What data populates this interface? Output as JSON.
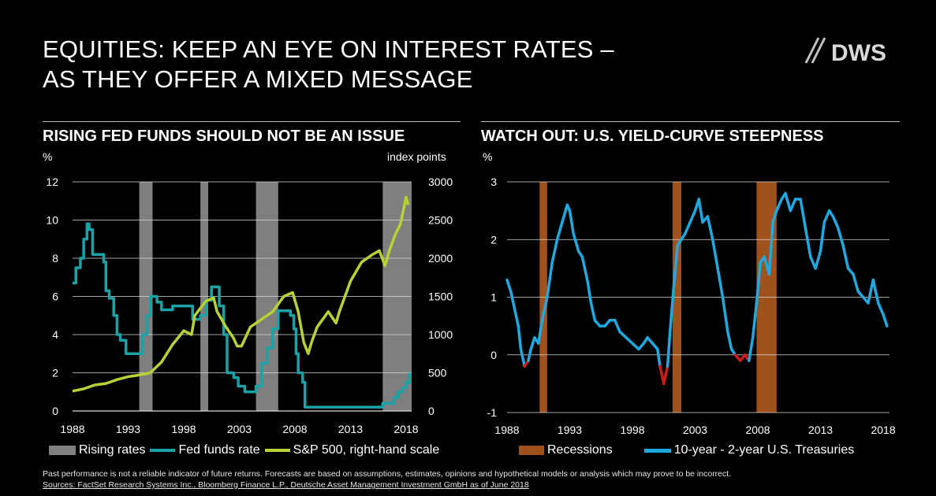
{
  "slide": {
    "title_line1": "EQUITIES: KEEP AN EYE ON INTEREST RATES –",
    "title_line2": "AS THEY OFFER A MIXED MESSAGE",
    "logo_text": "DWS"
  },
  "footnote": {
    "disclaimer": "Past performance is not a reliable indicator of future returns. Forecasts are based on assumptions, estimates, opinions and hypothetical models or analysis which may prove to be incorrect.",
    "sources": "Sources: FactSet Research Systems Inc., Bloomberg Finance L.P., Deutsche Asset Management Investment GmbH as of June 2018"
  },
  "colors": {
    "fed_funds": "#1aa3a6",
    "sp500": "#b5d334",
    "rising_rates": "#7f7f7f",
    "recession": "#a0521c",
    "yield_curve": "#1ea9e0",
    "inversion": "#cc1b1b",
    "grid": "#d9d9d9"
  },
  "chart_data": [
    {
      "type": "line",
      "title": "RISING FED FUNDS SHOULD NOT BE AN ISSUE",
      "ylabel_left": "%",
      "ylabel_right": "index points",
      "xlim": [
        1988,
        2018.5
      ],
      "ylim_left": [
        0,
        12
      ],
      "ylim_right": [
        0,
        3000
      ],
      "x_ticks": [
        1988,
        1993,
        1998,
        2003,
        2008,
        2013,
        2018
      ],
      "y_ticks_left": [
        0,
        2,
        4,
        6,
        8,
        10,
        12
      ],
      "y_ticks_right": [
        0,
        500,
        1000,
        1500,
        2000,
        2500,
        3000
      ],
      "grid": "horizontal",
      "legend_position": "bottom",
      "legend": [
        "Rising rates",
        "Fed funds rate",
        "S&P 500, right-hand scale"
      ],
      "shaded_periods": [
        [
          1994.0,
          1995.2
        ],
        [
          1999.5,
          2000.2
        ],
        [
          2004.5,
          2006.5
        ],
        [
          2015.9,
          2018.5
        ]
      ],
      "series": [
        {
          "name": "Fed funds rate",
          "axis": "left",
          "x": [
            1988.0,
            1988.3,
            1988.7,
            1989.0,
            1989.3,
            1989.5,
            1989.8,
            1990.5,
            1990.8,
            1991.0,
            1991.3,
            1991.7,
            1992.0,
            1992.3,
            1992.8,
            1993.5,
            1994.0,
            1994.3,
            1994.7,
            1995.0,
            1995.3,
            1995.6,
            1996.0,
            1996.5,
            1997.0,
            1998.0,
            1998.8,
            1999.0,
            1999.5,
            2000.0,
            2000.5,
            2000.9,
            2001.2,
            2001.6,
            2001.9,
            2002.5,
            2002.9,
            2003.5,
            2004.5,
            2005.0,
            2005.5,
            2006.0,
            2006.5,
            2007.0,
            2007.6,
            2007.9,
            2008.1,
            2008.3,
            2008.7,
            2008.9,
            2009.0,
            2015.9,
            2016.5,
            2016.9,
            2017.3,
            2017.7,
            2018.0,
            2018.3
          ],
          "y": [
            6.7,
            7.5,
            8.0,
            9.0,
            9.8,
            9.5,
            8.2,
            8.2,
            7.8,
            6.3,
            5.9,
            5.0,
            4.0,
            3.7,
            3.0,
            3.0,
            3.0,
            4.0,
            5.0,
            6.0,
            6.0,
            5.7,
            5.3,
            5.3,
            5.5,
            5.5,
            4.8,
            4.8,
            5.0,
            5.8,
            6.5,
            6.5,
            5.5,
            4.0,
            2.0,
            1.75,
            1.3,
            1.0,
            1.3,
            2.5,
            3.3,
            4.3,
            5.25,
            5.25,
            5.0,
            4.3,
            3.0,
            2.0,
            1.5,
            0.2,
            0.2,
            0.4,
            0.4,
            0.7,
            1.0,
            1.2,
            1.5,
            2.0
          ]
        },
        {
          "name": "S&P 500, right-hand scale",
          "axis": "right",
          "x": [
            1988.0,
            1989.0,
            1990.0,
            1991.0,
            1992.0,
            1993.0,
            1994.0,
            1995.0,
            1996.0,
            1997.0,
            1998.0,
            1998.7,
            1999.0,
            2000.0,
            2000.7,
            2001.0,
            2001.8,
            2002.5,
            2002.8,
            2003.2,
            2004.0,
            2005.0,
            2006.0,
            2007.0,
            2007.8,
            2008.3,
            2008.8,
            2009.2,
            2009.5,
            2010.0,
            2011.0,
            2011.7,
            2012.0,
            2013.0,
            2014.0,
            2015.0,
            2015.6,
            2016.1,
            2016.5,
            2017.0,
            2017.5,
            2018.0,
            2018.2
          ],
          "y": [
            260,
            290,
            340,
            360,
            410,
            450,
            470,
            500,
            640,
            870,
            1050,
            1000,
            1250,
            1440,
            1480,
            1300,
            1100,
            950,
            850,
            850,
            1100,
            1200,
            1300,
            1500,
            1550,
            1300,
            900,
            750,
            900,
            1100,
            1300,
            1150,
            1300,
            1700,
            1950,
            2050,
            2100,
            1900,
            2100,
            2300,
            2450,
            2800,
            2700
          ]
        }
      ]
    },
    {
      "type": "line",
      "title": "WATCH OUT: U.S. YIELD-CURVE STEEPNESS",
      "ylabel": "%",
      "xlim": [
        1988,
        2018.5
      ],
      "ylim": [
        -1,
        3
      ],
      "x_ticks": [
        1988,
        1993,
        1998,
        2003,
        2008,
        2013,
        2018
      ],
      "y_ticks": [
        -1,
        0,
        1,
        2,
        3
      ],
      "grid": "horizontal",
      "legend_position": "bottom",
      "legend": [
        "Recessions",
        "10-year - 2-year U.S. Treasuries"
      ],
      "shaded_periods": [
        [
          1990.6,
          1991.2
        ],
        [
          2001.2,
          2001.9
        ],
        [
          2007.9,
          2009.5
        ]
      ],
      "series": [
        {
          "name": "10-year - 2-year U.S. Treasuries",
          "x": [
            1988.0,
            1988.3,
            1988.6,
            1988.9,
            1989.1,
            1989.4,
            1989.7,
            1989.9,
            1990.2,
            1990.5,
            1990.8,
            1991.2,
            1991.6,
            1992.0,
            1992.4,
            1992.8,
            1993.0,
            1993.3,
            1993.7,
            1994.0,
            1994.4,
            1994.7,
            1995.0,
            1995.4,
            1995.8,
            1996.2,
            1996.6,
            1997.0,
            1997.5,
            1998.0,
            1998.5,
            1998.9,
            1999.2,
            1999.6,
            2000.0,
            2000.2,
            2000.5,
            2000.8,
            2001.0,
            2001.3,
            2001.6,
            2001.9,
            2002.2,
            2002.6,
            2003.0,
            2003.3,
            2003.6,
            2004.0,
            2004.4,
            2004.8,
            2005.2,
            2005.6,
            2005.9,
            2006.2,
            2006.6,
            2007.0,
            2007.3,
            2007.6,
            2007.9,
            2008.2,
            2008.5,
            2008.9,
            2009.2,
            2009.5,
            2009.9,
            2010.2,
            2010.6,
            2011.0,
            2011.4,
            2011.8,
            2012.2,
            2012.6,
            2013.0,
            2013.3,
            2013.7,
            2014.0,
            2014.4,
            2014.8,
            2015.2,
            2015.6,
            2016.0,
            2016.4,
            2016.8,
            2017.2,
            2017.6,
            2018.0,
            2018.3
          ],
          "y": [
            1.3,
            1.1,
            0.8,
            0.5,
            0.1,
            -0.2,
            -0.1,
            0.1,
            0.3,
            0.2,
            0.6,
            1.0,
            1.6,
            2.0,
            2.3,
            2.6,
            2.5,
            2.1,
            1.8,
            1.7,
            1.3,
            0.9,
            0.6,
            0.5,
            0.5,
            0.6,
            0.6,
            0.4,
            0.3,
            0.2,
            0.1,
            0.2,
            0.3,
            0.2,
            0.1,
            -0.2,
            -0.5,
            -0.2,
            0.4,
            1.2,
            1.9,
            2.0,
            2.1,
            2.3,
            2.5,
            2.7,
            2.3,
            2.4,
            2.0,
            1.5,
            1.0,
            0.4,
            0.1,
            0.0,
            -0.1,
            0.0,
            -0.1,
            0.3,
            0.9,
            1.6,
            1.7,
            1.4,
            2.3,
            2.5,
            2.7,
            2.8,
            2.5,
            2.7,
            2.7,
            2.2,
            1.7,
            1.5,
            1.8,
            2.3,
            2.5,
            2.4,
            2.2,
            1.9,
            1.5,
            1.4,
            1.1,
            1.0,
            0.9,
            1.3,
            0.9,
            0.7,
            0.5
          ]
        }
      ]
    }
  ]
}
